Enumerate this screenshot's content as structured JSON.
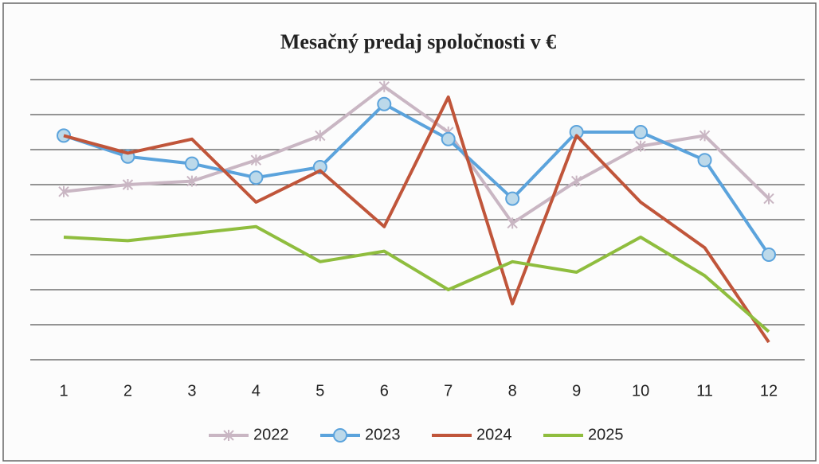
{
  "chart_data": {
    "type": "line",
    "title": "Mesačný predaj spoločnosti v €",
    "categories": [
      "1",
      "2",
      "3",
      "4",
      "5",
      "6",
      "7",
      "8",
      "9",
      "10",
      "11",
      "12"
    ],
    "series": [
      {
        "name": "2022",
        "color": "#c9b6c3",
        "marker": "asterisk",
        "values": [
          4.8,
          5.0,
          5.1,
          5.7,
          6.4,
          7.8,
          6.5,
          3.9,
          5.1,
          6.1,
          6.4,
          4.6
        ]
      },
      {
        "name": "2023",
        "color": "#5ba3dc",
        "marker": "circle",
        "values": [
          6.4,
          5.8,
          5.6,
          5.2,
          5.5,
          7.3,
          6.3,
          4.6,
          6.5,
          6.5,
          5.7,
          3.0
        ]
      },
      {
        "name": "2024",
        "color": "#c0553a",
        "marker": "none",
        "values": [
          6.4,
          5.9,
          6.3,
          4.5,
          5.4,
          3.8,
          7.5,
          1.6,
          6.4,
          4.5,
          3.2,
          0.5
        ]
      },
      {
        "name": "2025",
        "color": "#8fbd3e",
        "marker": "none",
        "values": [
          3.5,
          3.4,
          3.6,
          3.8,
          2.8,
          3.1,
          2.0,
          2.8,
          2.5,
          3.5,
          2.4,
          0.8
        ]
      }
    ],
    "ylim": [
      0,
      8
    ],
    "yticks": [
      0,
      1,
      2,
      3,
      4,
      5,
      6,
      7,
      8
    ],
    "grid": true,
    "legend": "bottom"
  }
}
